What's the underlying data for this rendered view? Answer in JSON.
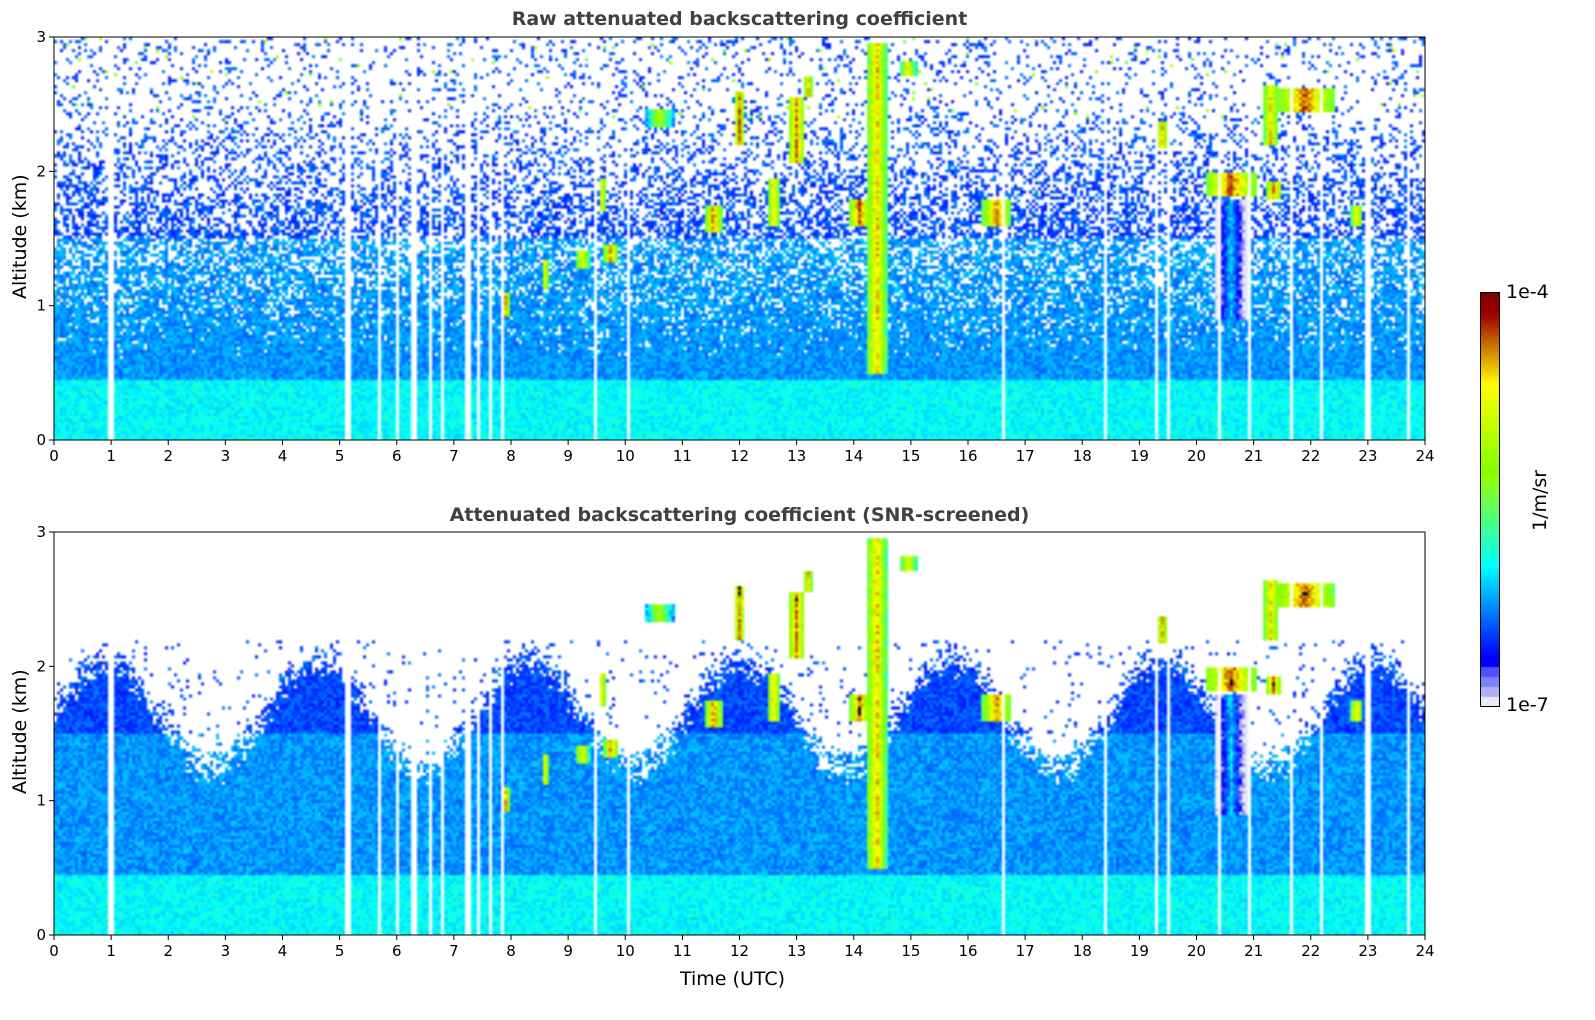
{
  "chart_data": [
    {
      "type": "heatmap",
      "title": "Raw attenuated backscattering coefficient",
      "xlabel": "",
      "ylabel": "Altitude (km)",
      "xlim": [
        0,
        24
      ],
      "ylim": [
        0,
        3
      ],
      "xticks": [
        "0",
        "1",
        "2",
        "3",
        "4",
        "5",
        "6",
        "7",
        "8",
        "9",
        "10",
        "11",
        "12",
        "13",
        "14",
        "15",
        "16",
        "17",
        "18",
        "19",
        "20",
        "21",
        "22",
        "23",
        "24"
      ],
      "yticks": [
        "0",
        "1",
        "2",
        "3"
      ],
      "screened": false
    },
    {
      "type": "heatmap",
      "title": "Attenuated backscattering coefficient (SNR-screened)",
      "xlabel": "Time (UTC)",
      "ylabel": "Altitude (km)",
      "xlim": [
        0,
        24
      ],
      "ylim": [
        0,
        3
      ],
      "xticks": [
        "0",
        "1",
        "2",
        "3",
        "4",
        "5",
        "6",
        "7",
        "8",
        "9",
        "10",
        "11",
        "12",
        "13",
        "14",
        "15",
        "16",
        "17",
        "18",
        "19",
        "20",
        "21",
        "22",
        "23",
        "24"
      ],
      "yticks": [
        "0",
        "1",
        "2",
        "3"
      ],
      "screened": true
    }
  ],
  "colorbar": {
    "label": "1/m/sr",
    "max_label": "1e-4",
    "min_label": "1e-7",
    "log_range": [
      -7,
      -4
    ]
  },
  "features": [
    {
      "t": 7.9,
      "w": 0.15,
      "z0": 0.92,
      "z1": 1.1,
      "v": -4.3
    },
    {
      "t": 8.6,
      "w": 0.12,
      "z0": 1.12,
      "z1": 1.35,
      "v": -4.4
    },
    {
      "t": 9.25,
      "w": 0.25,
      "z0": 1.28,
      "z1": 1.42,
      "v": -4.5
    },
    {
      "t": 9.75,
      "w": 0.25,
      "z0": 1.32,
      "z1": 1.45,
      "v": -4.2
    },
    {
      "t": 9.6,
      "w": 0.1,
      "z0": 1.7,
      "z1": 1.95,
      "v": -4.3
    },
    {
      "t": 10.6,
      "w": 0.5,
      "z0": 2.33,
      "z1": 2.47,
      "v": -4.9
    },
    {
      "t": 11.55,
      "w": 0.3,
      "z0": 1.55,
      "z1": 1.75,
      "v": -4.2
    },
    {
      "t": 12.0,
      "w": 0.2,
      "z0": 2.2,
      "z1": 2.6,
      "v": -4.2
    },
    {
      "t": 12.6,
      "w": 0.2,
      "z0": 1.6,
      "z1": 1.95,
      "v": -4.3
    },
    {
      "t": 13.0,
      "w": 0.3,
      "z0": 2.05,
      "z1": 2.55,
      "v": -4.2
    },
    {
      "t": 13.2,
      "w": 0.15,
      "z0": 2.55,
      "z1": 2.7,
      "v": -4.3
    },
    {
      "t": 14.1,
      "w": 0.35,
      "z0": 1.6,
      "z1": 1.8,
      "v": -4.1
    },
    {
      "t": 14.4,
      "w": 0.35,
      "z0": 0.5,
      "z1": 2.95,
      "v": -4.3
    },
    {
      "t": 14.95,
      "w": 0.3,
      "z0": 2.72,
      "z1": 2.82,
      "v": -4.5
    },
    {
      "t": 16.5,
      "w": 0.5,
      "z0": 1.58,
      "z1": 1.8,
      "v": -4.2
    },
    {
      "t": 19.4,
      "w": 0.2,
      "z0": 2.18,
      "z1": 2.38,
      "v": -4.3
    },
    {
      "t": 20.6,
      "w": 0.9,
      "z0": 1.82,
      "z1": 2.0,
      "v": -4.1
    },
    {
      "t": 20.6,
      "w": 0.6,
      "z0": 0.9,
      "z1": 1.8,
      "v": -5.9
    },
    {
      "t": 21.35,
      "w": 0.3,
      "z0": 1.78,
      "z1": 1.92,
      "v": -4.2
    },
    {
      "t": 21.9,
      "w": 1.0,
      "z0": 2.45,
      "z1": 2.62,
      "v": -4.1
    },
    {
      "t": 21.3,
      "w": 0.3,
      "z0": 2.2,
      "z1": 2.65,
      "v": -4.4
    },
    {
      "t": 22.8,
      "w": 0.2,
      "z0": 1.58,
      "z1": 1.75,
      "v": -4.4
    }
  ],
  "data_gaps_utc": [
    1.0,
    5.15,
    5.7,
    6.0,
    6.3,
    6.6,
    6.8,
    7.25,
    7.45,
    7.65,
    7.85,
    9.5,
    10.05,
    16.6,
    18.4,
    19.3,
    19.5,
    20.4,
    20.95,
    21.65,
    22.2,
    23.0,
    23.7
  ]
}
